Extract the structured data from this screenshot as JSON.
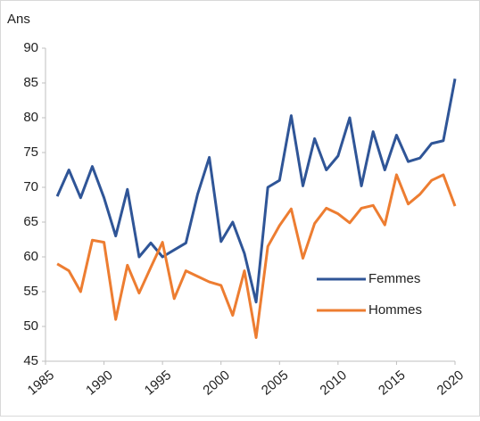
{
  "chart_data": {
    "type": "line",
    "y_label": "Ans",
    "x": [
      1986,
      1987,
      1988,
      1989,
      1990,
      1991,
      1992,
      1993,
      1994,
      1995,
      1996,
      1997,
      1998,
      1999,
      2000,
      2001,
      2002,
      2003,
      2004,
      2005,
      2006,
      2007,
      2008,
      2009,
      2010,
      2011,
      2012,
      2013,
      2014,
      2015,
      2016,
      2017,
      2018,
      2019,
      2020
    ],
    "series": [
      {
        "name": "Femmes",
        "color": "#2f5597",
        "values": [
          68.7,
          72.5,
          68.5,
          73,
          68.5,
          63,
          69.7,
          60,
          62,
          60,
          61,
          62,
          69,
          74.3,
          62.2,
          65,
          60.5,
          53.5,
          70,
          71,
          80.3,
          70.2,
          77,
          72.5,
          74.5,
          80,
          70.2,
          78,
          72.5,
          77.5,
          73.7,
          74.2,
          76.3,
          76.7,
          85.6
        ]
      },
      {
        "name": "Hommes",
        "color": "#ed7d31",
        "values": [
          59,
          58,
          55,
          62.4,
          62.1,
          51,
          58.8,
          54.8,
          58.5,
          62.1,
          54,
          58,
          57.2,
          56.4,
          55.9,
          51.6,
          58,
          48.4,
          61.5,
          64.5,
          66.9,
          59.8,
          64.8,
          67,
          66.2,
          64.9,
          67,
          67.4,
          64.6,
          71.8,
          67.6,
          69,
          71,
          71.8,
          67.3
        ]
      }
    ],
    "xlim": [
      1985,
      2020
    ],
    "xticks": [
      1985,
      1990,
      1995,
      2000,
      2005,
      2010,
      2015,
      2020
    ],
    "ylim": [
      45,
      90
    ],
    "yticks": [
      45,
      50,
      55,
      60,
      65,
      70,
      75,
      80,
      85,
      90
    ],
    "legend": "right"
  }
}
